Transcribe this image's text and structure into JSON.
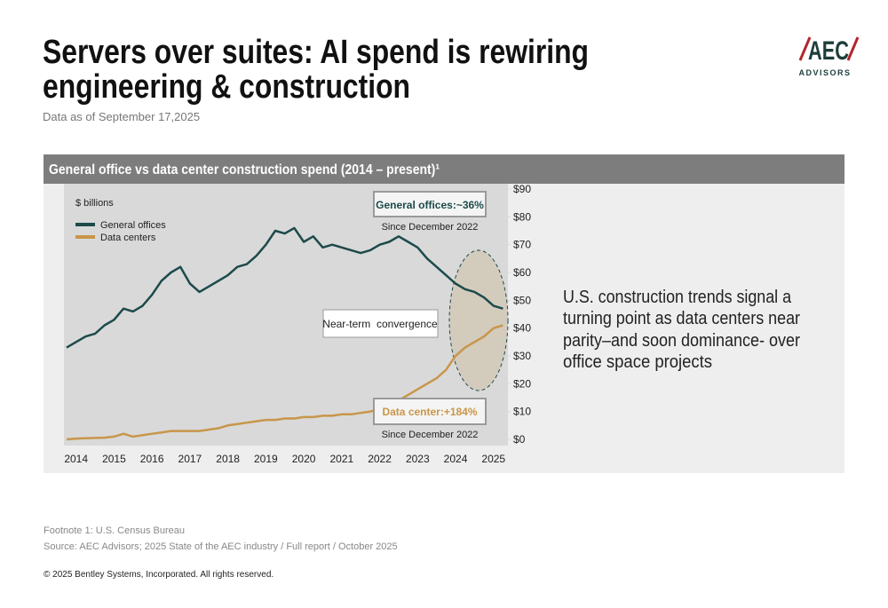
{
  "header": {
    "title_lines": [
      "Servers over suites: AI spend is rewiring",
      "engineering & construction"
    ],
    "subtitle": "Data as of September 17,2025"
  },
  "logo": {
    "name": "AEC",
    "sub": "ADVISORS"
  },
  "chart_data": {
    "type": "line",
    "title": "General office vs data center construction spend (2014 – present)¹",
    "unit_label": "$ billions",
    "x": [
      2013.75,
      2014,
      2014.25,
      2014.5,
      2014.75,
      2015,
      2015.25,
      2015.5,
      2015.75,
      2016,
      2016.25,
      2016.5,
      2016.75,
      2017,
      2017.25,
      2017.5,
      2017.75,
      2018,
      2018.25,
      2018.5,
      2018.75,
      2019,
      2019.25,
      2019.5,
      2019.75,
      2020,
      2020.25,
      2020.5,
      2020.75,
      2021,
      2021.25,
      2021.5,
      2021.75,
      2022,
      2022.25,
      2022.5,
      2022.75,
      2023,
      2023.25,
      2023.5,
      2023.75,
      2024,
      2024.25,
      2024.5,
      2024.75,
      2025,
      2025.25
    ],
    "series": [
      {
        "name": "General offices",
        "color": "#1d4a4a",
        "values": [
          33,
          35,
          37,
          38,
          41,
          43,
          47,
          46,
          48,
          52,
          57,
          60,
          62,
          56,
          53,
          55,
          57,
          59,
          62,
          63,
          66,
          70,
          75,
          74,
          76,
          71,
          73,
          69,
          70,
          69,
          68,
          67,
          68,
          70,
          71,
          73,
          71,
          69,
          65,
          62,
          59,
          56,
          54,
          53,
          51,
          48,
          47
        ]
      },
      {
        "name": "Data centers",
        "color": "#c8964a",
        "values": [
          0,
          0.3,
          0.4,
          0.5,
          0.6,
          1,
          2,
          1,
          1.5,
          2,
          2.5,
          3,
          3,
          3,
          3,
          3.5,
          4,
          5,
          5.5,
          6,
          6.5,
          7,
          7,
          7.5,
          7.5,
          8,
          8,
          8.5,
          8.5,
          9,
          9,
          9.5,
          10,
          11,
          12,
          14,
          16,
          18,
          20,
          22,
          25,
          30,
          33,
          35,
          37,
          40,
          41
        ]
      }
    ],
    "xlim": [
      2013.75,
      2025.38
    ],
    "xticks": [
      2014,
      2015,
      2016,
      2017,
      2018,
      2019,
      2020,
      2021,
      2022,
      2023,
      2024,
      2025
    ],
    "ylim": [
      0,
      90
    ],
    "yticks": [
      {
        "value": 0,
        "label": "$0"
      },
      {
        "value": 10,
        "label": "$10"
      },
      {
        "value": 20,
        "label": "$20"
      },
      {
        "value": 30,
        "label": "$30"
      },
      {
        "value": 40,
        "label": "$40"
      },
      {
        "value": 50,
        "label": "$50"
      },
      {
        "value": 60,
        "label": "$60"
      },
      {
        "value": 70,
        "label": "$70"
      },
      {
        "value": 80,
        "label": "$80"
      },
      {
        "value": 90,
        "label": "$90"
      }
    ],
    "annotations": [
      {
        "text": "General offices:~36%",
        "note": "Since December 2022"
      },
      {
        "text": "Data center:+184%",
        "note": "Since December 2022"
      },
      {
        "text": "Near-term  convergence"
      }
    ]
  },
  "side_text": [
    "U.S. construction trends signal a",
    "turning point as data centers near",
    "parity–and soon dominance- over",
    "office space projects"
  ],
  "footer": {
    "footnote": "Footnote 1: U.S. Census Bureau",
    "source": "Source: AEC Advisors; 2025 State of the AEC industry / Full report / October 2025",
    "copyright": "© 2025 Bentley Systems, Incorporated. All rights reserved."
  }
}
